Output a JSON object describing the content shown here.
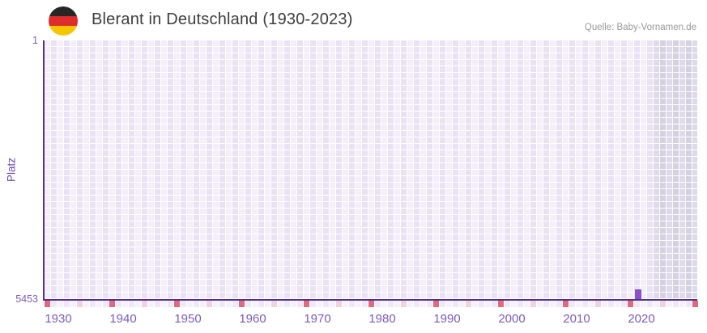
{
  "header": {
    "title": "Blerant in Deutschland (1930-2023)",
    "source": "Quelle: Baby-Vornamen.de"
  },
  "chart_data": {
    "type": "bar",
    "title": "Blerant in Deutschland (1930-2023)",
    "xlabel": "",
    "ylabel": "Platz",
    "x_tick_labels": [
      "1930",
      "1940",
      "1950",
      "1960",
      "1970",
      "1980",
      "1990",
      "2000",
      "2010",
      "2020"
    ],
    "y_tick_labels": [
      "1",
      "5453"
    ],
    "y_axis": {
      "top_value": 1,
      "bottom_value": 5453,
      "inverted_rank_scale": true
    },
    "x_range_years": [
      1930,
      2023
    ],
    "series": [
      {
        "name": "Platz",
        "points": [
          {
            "year": 2019,
            "platz": 5453
          }
        ]
      }
    ],
    "layout_hints": {
      "grid": "lavender cell grid, alternating year columns",
      "shaded_recent_years": "grau ab ca. 2022",
      "bottom_axis_marks": "red every 10th year cell, pink every 5th",
      "legend": "none"
    }
  },
  "theme": {
    "background": "#ffffff",
    "axis_color": "#542e94",
    "bar_color": "#8a52c8",
    "tick_text_color": "#7a5ac5",
    "title_color": "#3d3d3d",
    "source_color": "#999999",
    "grid_cell_light": "#f3eefa",
    "grid_cell_dark": "#e9e2f5",
    "grid_gray_light": "#dedae9",
    "grid_gray_dark": "#d5d0e2",
    "mark_red": "#e06a7c",
    "mark_pink": "#efd3dd",
    "mark_row_light": "#f6f2fb",
    "mark_row_dark": "#efe9f7",
    "flag_black": "#262626",
    "flag_red": "#dd2c2c",
    "flag_gold": "#f6c500"
  }
}
